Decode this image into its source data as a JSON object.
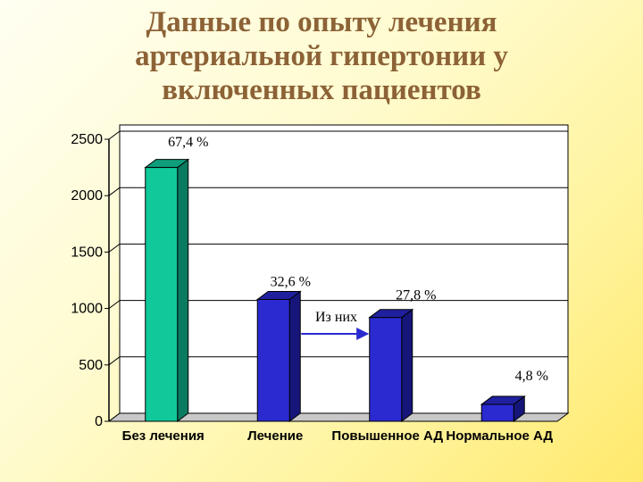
{
  "slide": {
    "title_lines": [
      "Данные по опыту лечения",
      "артериальной гипертонии у",
      "включенных пациентов"
    ]
  },
  "colors": {
    "title": "#8c6236",
    "bar_green": "#10c89a",
    "bar_blue": "#2a2ad0",
    "arrow": "#2a2ad0"
  },
  "chart_data": {
    "type": "bar",
    "title": "",
    "xlabel": "",
    "ylabel": "",
    "ylim": [
      0,
      2500
    ],
    "yticks": [
      0,
      500,
      1000,
      1500,
      2000,
      2500
    ],
    "grid": true,
    "legend": "none",
    "style": "3d",
    "categories": [
      "Без лечения",
      "Лечение",
      "Повышенное АД",
      "Нормальное АД"
    ],
    "values": [
      2250,
      1080,
      920,
      150
    ],
    "data_labels": [
      "67,4 %",
      "32,6 %",
      "27,8 %",
      "4,8 %"
    ],
    "bar_colors": [
      "green",
      "blue",
      "blue",
      "blue"
    ],
    "annotation": {
      "text": "Из них",
      "from_category": 1,
      "to_category": 2
    }
  }
}
